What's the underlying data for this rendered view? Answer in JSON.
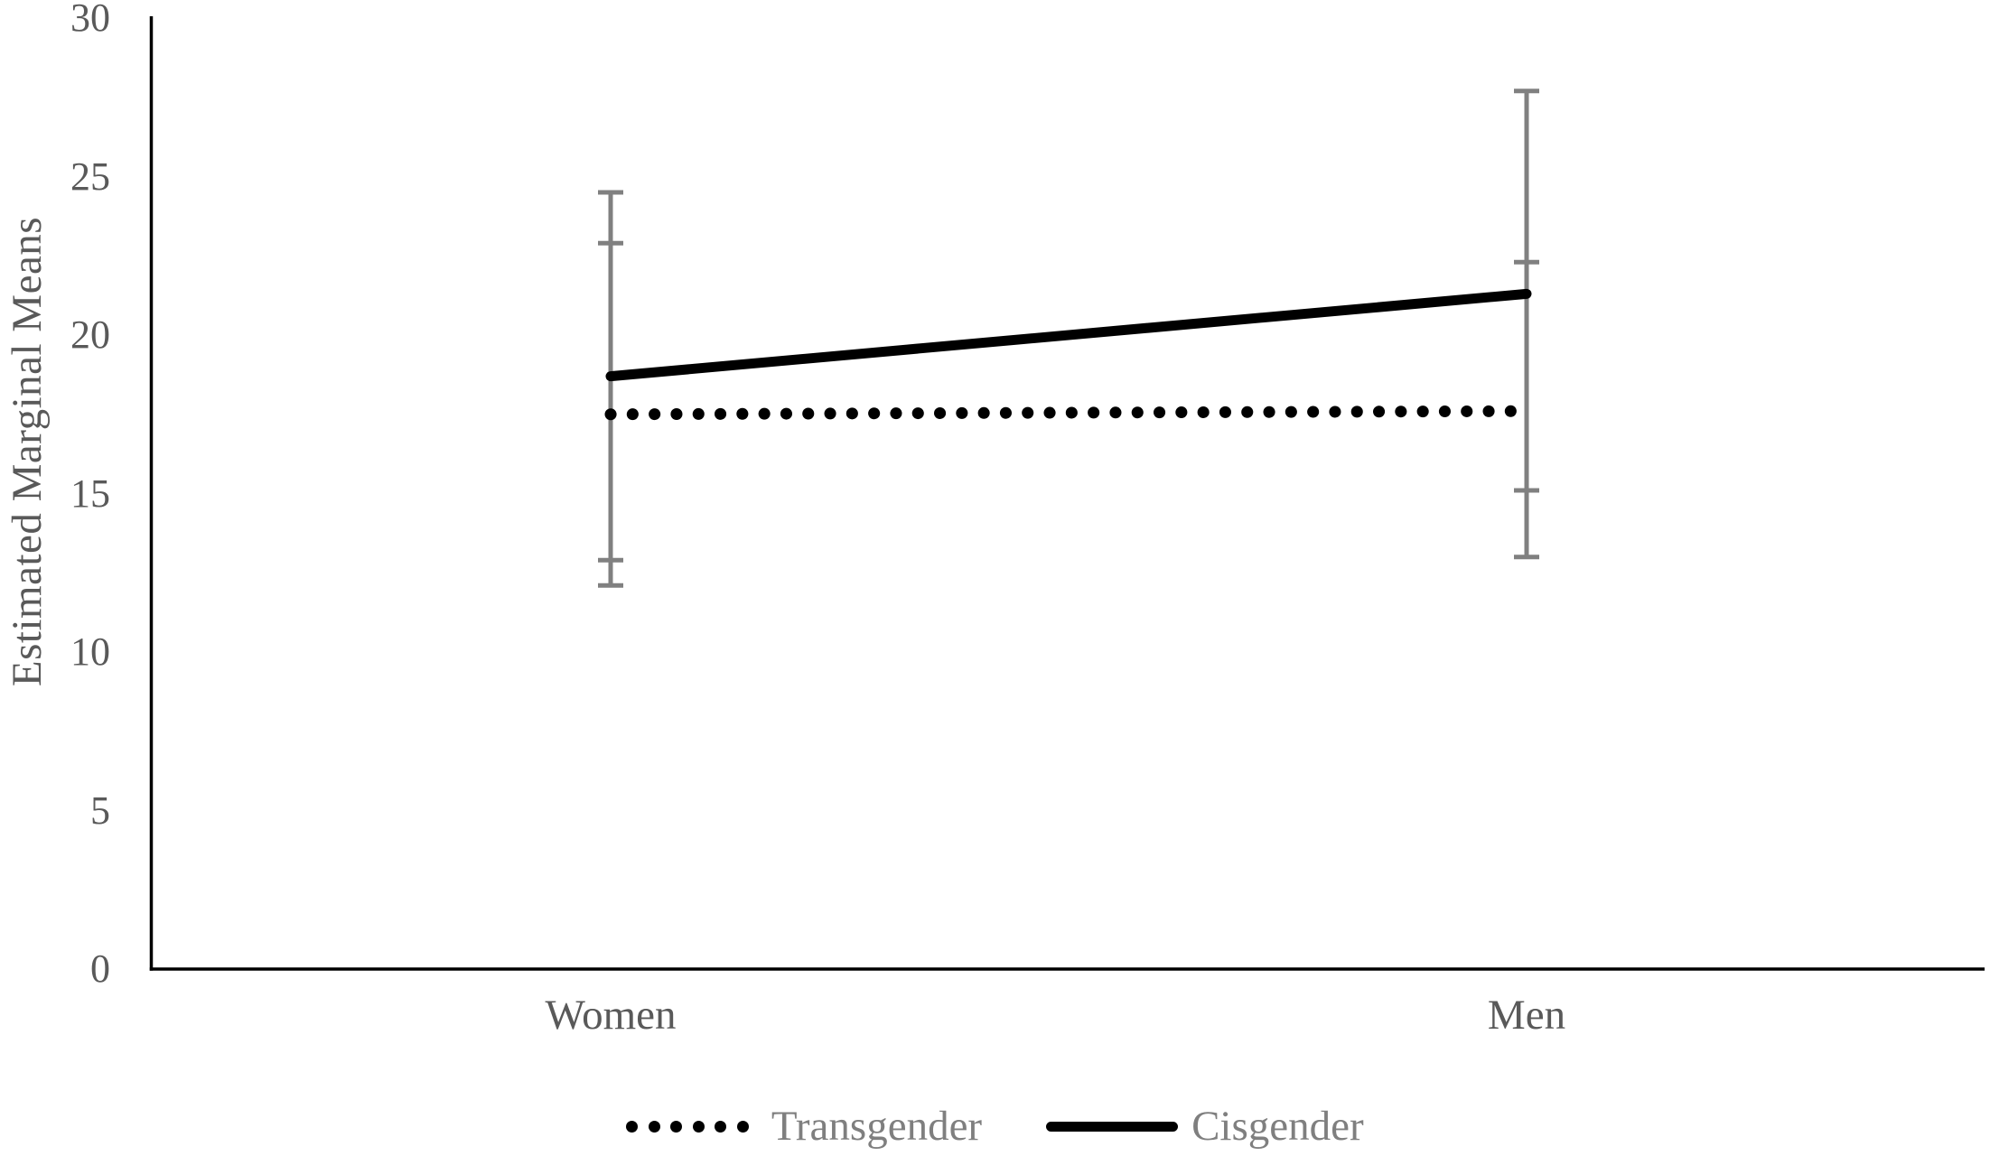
{
  "figure": {
    "background": "#ffffff",
    "plot_area_border": "none"
  },
  "chart_data": {
    "type": "line",
    "categories": [
      "Women",
      "Men"
    ],
    "series": [
      {
        "name": "Transgender",
        "line_style": "dotted",
        "color": "#000000",
        "values": [
          17.5,
          17.6
        ],
        "error_low": [
          12.1,
          13.0
        ],
        "error_high": [
          22.9,
          22.3
        ]
      },
      {
        "name": "Cisgender",
        "line_style": "solid",
        "color": "#000000",
        "values": [
          18.7,
          21.3
        ],
        "error_low": [
          12.9,
          15.1
        ],
        "error_high": [
          24.5,
          27.7
        ]
      }
    ],
    "title": "",
    "xlabel": "",
    "ylabel": "Estimated Marginal Means",
    "ylim": [
      0,
      30
    ],
    "yticks": [
      0,
      5,
      10,
      15,
      20,
      25,
      30
    ],
    "grid": false,
    "legend_position": "bottom",
    "error_bars": true,
    "error_bar_color": "#808080",
    "axis_line_color": "#000000",
    "tick_label_color": "#595959",
    "legend_text_color": "#7f7f7f"
  },
  "legend": {
    "items": [
      {
        "label": "Transgender",
        "marker": "dotted-line"
      },
      {
        "label": "Cisgender",
        "marker": "solid-line"
      }
    ]
  }
}
